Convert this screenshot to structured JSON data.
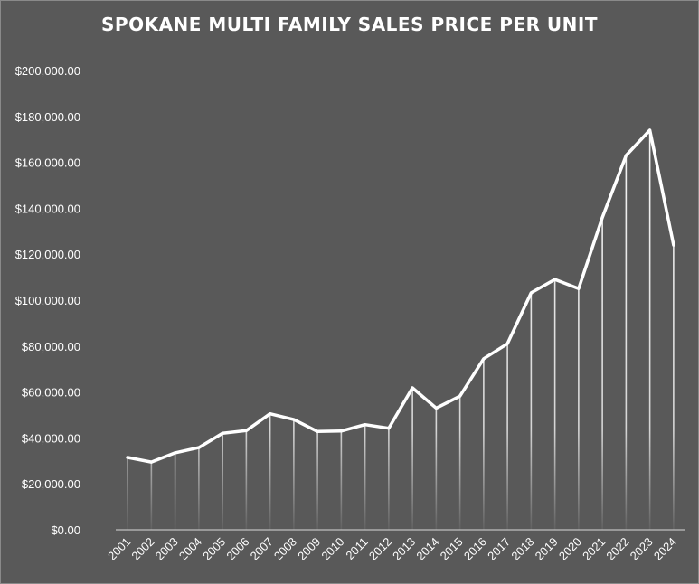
{
  "chart_data": {
    "type": "line",
    "title": "SPOKANE MULTI FAMILY SALES PRICE PER UNIT",
    "xlabel": "",
    "ylabel": "",
    "categories": [
      "2001",
      "2002",
      "2003",
      "2004",
      "2005",
      "2006",
      "2007",
      "2008",
      "2009",
      "2010",
      "2011",
      "2012",
      "2013",
      "2014",
      "2015",
      "2016",
      "2017",
      "2018",
      "2019",
      "2020",
      "2021",
      "2022",
      "2023",
      "2024"
    ],
    "values": [
      31500,
      29500,
      33500,
      35800,
      42000,
      43200,
      50500,
      48000,
      42800,
      43000,
      45800,
      44200,
      61800,
      53000,
      58200,
      74500,
      81000,
      103200,
      109000,
      105000,
      136000,
      163000,
      174000,
      124000
    ],
    "ylim": [
      0,
      200000
    ],
    "yticks": [
      0,
      20000,
      40000,
      60000,
      80000,
      100000,
      120000,
      140000,
      160000,
      180000,
      200000
    ],
    "ytick_labels": [
      "$0.00",
      "$20,000.00",
      "$40,000.00",
      "$60,000.00",
      "$80,000.00",
      "$100,000.00",
      "$120,000.00",
      "$140,000.00",
      "$160,000.00",
      "$180,000.00",
      "$200,000.00"
    ],
    "grid": false,
    "legend": "none",
    "drop_lines": true,
    "colors": {
      "background": "#595959",
      "line": "#ffffff",
      "axis": "#d9d9d9",
      "text": "#ffffff"
    }
  }
}
